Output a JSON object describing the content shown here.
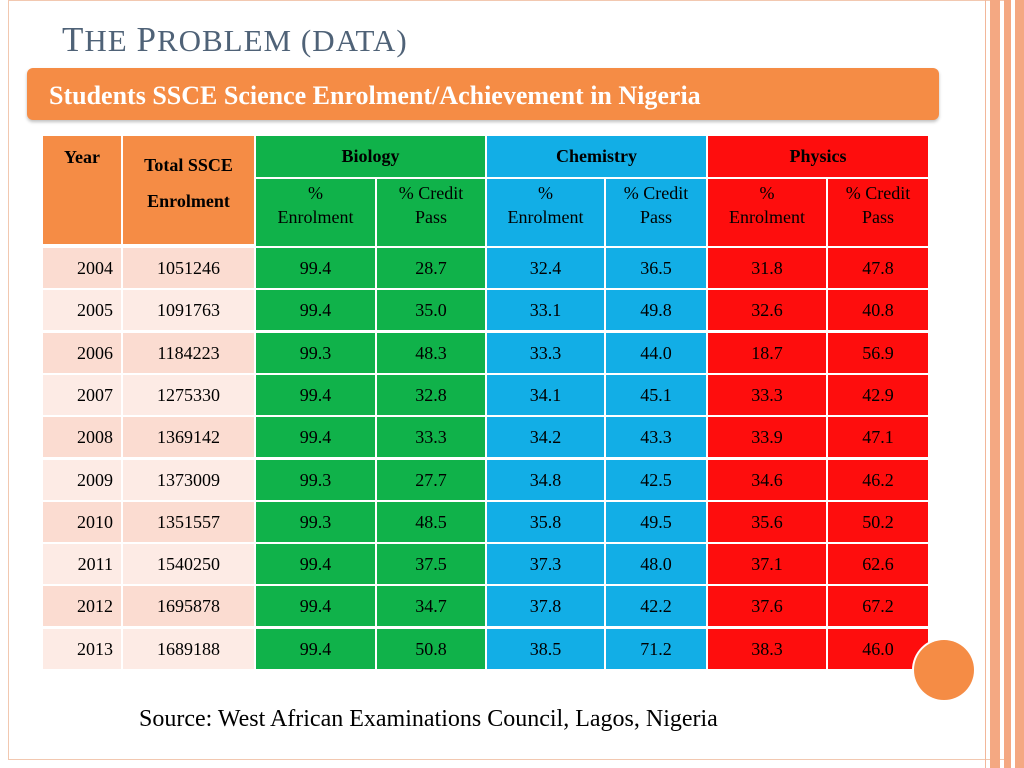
{
  "slide": {
    "title_first": "T",
    "title_rest1": "HE ",
    "title_second": "P",
    "title_rest2": "ROBLEM (DATA)",
    "banner": "Students SSCE Science Enrolment/Achievement in Nigeria",
    "source": "Source: West African Examinations Council, Lagos, Nigeria"
  },
  "colors": {
    "accent": "#f58c45",
    "biology": "#10b24a",
    "chemistry": "#12aee6",
    "physics": "#fe0d0d",
    "title": "#4f6277"
  },
  "table": {
    "headers": {
      "year": "Year",
      "total_a": "Total SSCE",
      "total_b": "Enrolment",
      "biology": "Biology",
      "chemistry": "Chemistry",
      "physics": "Physics"
    },
    "subheaders": {
      "bio_enrol_a": "%",
      "bio_enrol_b": "Enrolment",
      "bio_pass_a": "%  Credit",
      "bio_pass_b": "Pass",
      "chem_enrol_a": "%",
      "chem_enrol_b": "Enrolment",
      "chem_pass_a": "%  Credit",
      "chem_pass_b": "Pass",
      "phy_enrol_a": "%",
      "phy_enrol_b": "Enrolment",
      "phy_pass_a": "% Credit",
      "phy_pass_b": "Pass"
    },
    "rows": [
      [
        "2004",
        "1051246",
        "99.4",
        "28.7",
        "32.4",
        "36.5",
        "31.8",
        "47.8"
      ],
      [
        "2005",
        "1091763",
        "99.4",
        "35.0",
        "33.1",
        "49.8",
        "32.6",
        "40.8"
      ],
      [
        "2006",
        "1184223",
        "99.3",
        "48.3",
        "33.3",
        "44.0",
        "18.7",
        "56.9"
      ],
      [
        "2007",
        "1275330",
        "99.4",
        "32.8",
        "34.1",
        "45.1",
        "33.3",
        "42.9"
      ],
      [
        "2008",
        "1369142",
        "99.4",
        "33.3",
        "34.2",
        "43.3",
        "33.9",
        "47.1"
      ],
      [
        "2009",
        "1373009",
        "99.3",
        "27.7",
        "34.8",
        "42.5",
        "34.6",
        "46.2"
      ],
      [
        "2010",
        "1351557",
        "99.3",
        "48.5",
        "35.8",
        "49.5",
        "35.6",
        "50.2"
      ],
      [
        "2011",
        "1540250",
        "99.4",
        "37.5",
        "37.3",
        "48.0",
        "37.1",
        "62.6"
      ],
      [
        "2012",
        "1695878",
        "99.4",
        "34.7",
        "37.8",
        "42.2",
        "37.6",
        "67.2"
      ],
      [
        "2013",
        "1689188",
        "99.4",
        "50.8",
        "38.5",
        "71.2",
        "38.3",
        "46.0"
      ]
    ]
  }
}
